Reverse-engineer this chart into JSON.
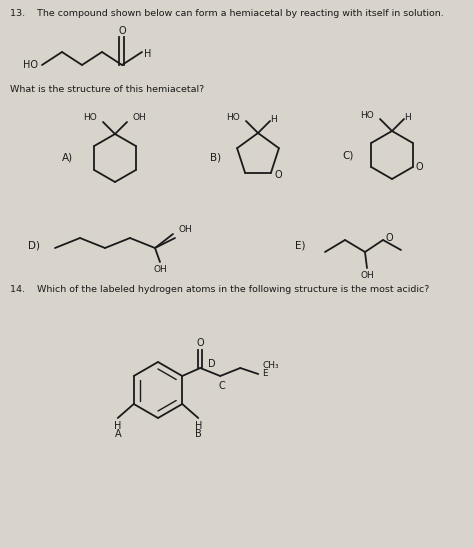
{
  "bg_color": "#d8d4cc",
  "text_color": "#1a1a1a",
  "line_color": "#1a1a1a",
  "title_q13": "13.    The compound shown below can form a hemiacetal by reacting with itself in solution.",
  "q13_sub": "What is the structure of this hemiacetal?",
  "title_q14": "14.    Which of the labeled hydrogen atoms in the following structure is the most acidic?",
  "figsize": [
    4.74,
    5.48
  ],
  "dpi": 100
}
